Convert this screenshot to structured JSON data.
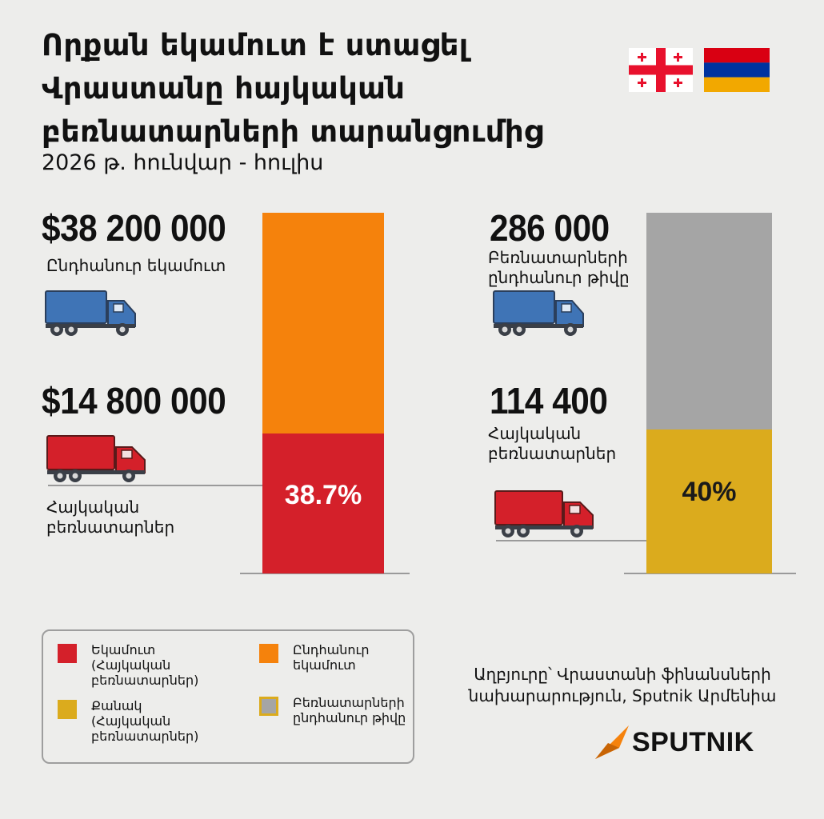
{
  "title_lines": [
    "Որքան եկամուտ է ստացել",
    "Վրաստանը հայկական",
    "բեռնատարների տարանցումից"
  ],
  "subtitle": "2026 թ. հունվար - հուլիս",
  "left_panel": {
    "total_value": "$38 200 000",
    "total_label": "Ընդհանուր եկամուտ",
    "part_value": "$14 800 000",
    "part_label_lines": [
      "Հայկական",
      "բեռնատարներ"
    ],
    "percent_label": "38.7%"
  },
  "right_panel": {
    "total_value": "286 000",
    "total_label_lines": [
      "Բեռնատարների",
      "ընդհանուր թիվը"
    ],
    "part_value": "114 400",
    "part_label_lines": [
      "Հայկական",
      "բեռնատարներ"
    ],
    "percent_label": "40%"
  },
  "legend": {
    "items": [
      {
        "lines": [
          "Եկամուտ",
          "(Հայկական",
          "բեռնատարներ)"
        ],
        "color": "#d4202a"
      },
      {
        "lines": [
          "Ընդհանուր",
          "եկամուտ"
        ],
        "color": "#f5820c"
      },
      {
        "lines": [
          "Քանակ",
          "(Հայկական",
          "բեռնատարներ)"
        ],
        "color": "#dbab1d"
      },
      {
        "lines": [
          "Բեռնատարների",
          "ընդհանուր թիվը"
        ],
        "color": "#a5a5a5"
      }
    ]
  },
  "source_lines": [
    "Աղբյուրը՝ Վրաստանի ֆինանսների",
    "նախարարություն, Sputnik Արմենիա"
  ],
  "logo_text": "SPUTNIK",
  "colors": {
    "revenue_armenian": "#d4202a",
    "revenue_total": "#f5820c",
    "count_armenian": "#dbab1d",
    "count_total": "#a5a5a5",
    "truck_blue": "#3f74b6",
    "truck_red": "#d4202a",
    "logo_orange": "#f5820c"
  },
  "chart_data": [
    {
      "type": "bar",
      "stacked": true,
      "categories": [
        "Ընդհանուր եկամուտ"
      ],
      "series": [
        {
          "name": "Եկամուտ (Հայկական բեռնատարներ)",
          "values": [
            14800000
          ]
        },
        {
          "name": "Ընդհանուր եկամուտ",
          "values": [
            38200000
          ]
        }
      ],
      "total": 38200000,
      "part": 14800000,
      "percent": 38.7,
      "unit": "$"
    },
    {
      "type": "bar",
      "stacked": true,
      "categories": [
        "Բեռնատարների ընդհանուր թիվը"
      ],
      "series": [
        {
          "name": "Քանակ (Հայկական բեռնատարներ)",
          "values": [
            114400
          ]
        },
        {
          "name": "Բեռնատարների ընդհանուր թիվը",
          "values": [
            286000
          ]
        }
      ],
      "total": 286000,
      "part": 114400,
      "percent": 40
    }
  ]
}
